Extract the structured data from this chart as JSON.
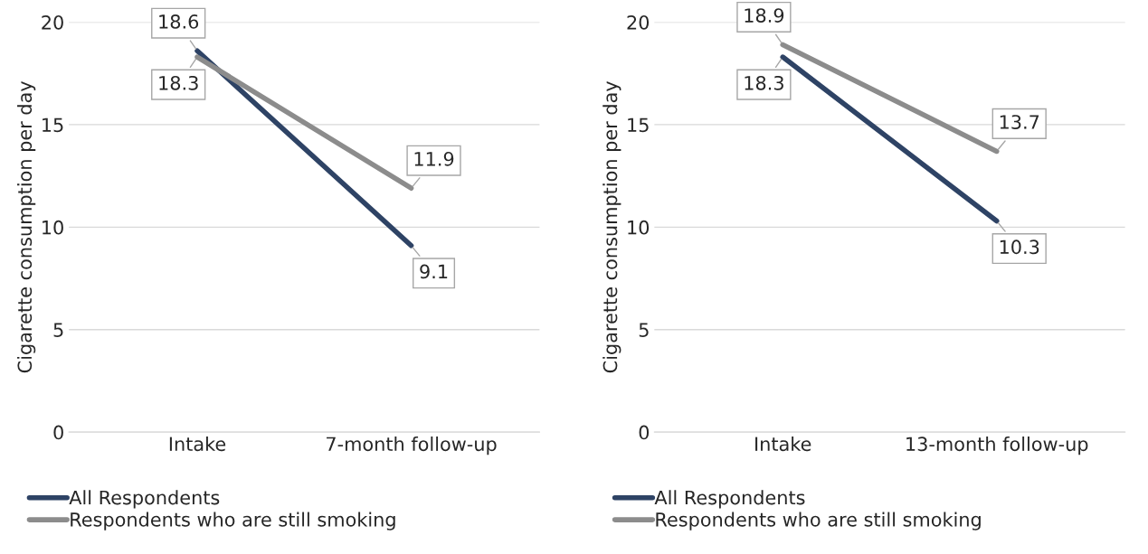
{
  "chart_data": [
    {
      "type": "line",
      "categories": [
        "Intake",
        "7-month follow-up"
      ],
      "ylabel": "Cigarette consumption per day",
      "ylim": [
        0,
        20
      ],
      "yticks": [
        0,
        5,
        10,
        15,
        20
      ],
      "grid": "y",
      "legend": "bottom",
      "data_labels": true,
      "marker": "none",
      "line_style": "solid",
      "series": [
        {
          "name": "All Respondents",
          "color": "#2e4365",
          "values": [
            18.6,
            9.1
          ]
        },
        {
          "name": "Respondents who are still smoking",
          "color": "#8c8c8c",
          "values": [
            18.3,
            11.9
          ]
        }
      ]
    },
    {
      "type": "line",
      "categories": [
        "Intake",
        "13-month follow-up"
      ],
      "ylabel": "Cigarette consumption per day",
      "ylim": [
        0,
        20
      ],
      "yticks": [
        0,
        5,
        10,
        15,
        20
      ],
      "grid": "y",
      "legend": "bottom",
      "data_labels": true,
      "marker": "none",
      "line_style": "solid",
      "series": [
        {
          "name": "All Respondents",
          "color": "#2e4365",
          "values": [
            18.3,
            10.3
          ]
        },
        {
          "name": "Respondents who are still smoking",
          "color": "#8c8c8c",
          "values": [
            18.9,
            13.7
          ]
        }
      ]
    }
  ]
}
